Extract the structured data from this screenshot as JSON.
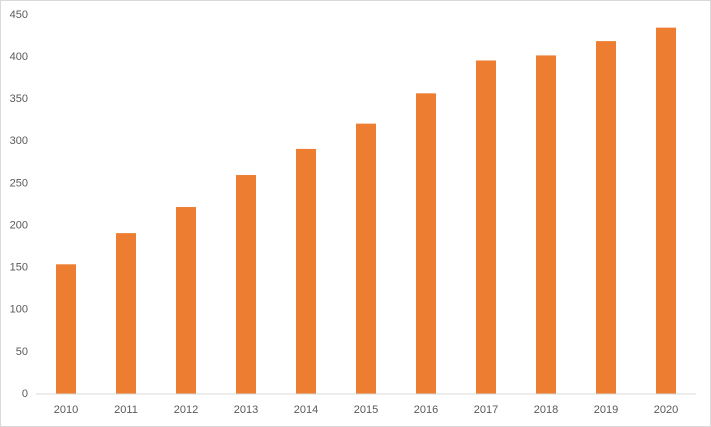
{
  "chart_data": {
    "type": "bar",
    "categories": [
      "2010",
      "2011",
      "2012",
      "2013",
      "2014",
      "2015",
      "2016",
      "2017",
      "2018",
      "2019",
      "2020"
    ],
    "values": [
      154,
      191,
      222,
      260,
      291,
      321,
      357,
      396,
      402,
      419,
      435
    ],
    "color": "#ed7d31",
    "ylim": [
      0,
      450
    ],
    "yticks": [
      0,
      50,
      100,
      150,
      200,
      250,
      300,
      350,
      400,
      450
    ],
    "grid": false
  }
}
